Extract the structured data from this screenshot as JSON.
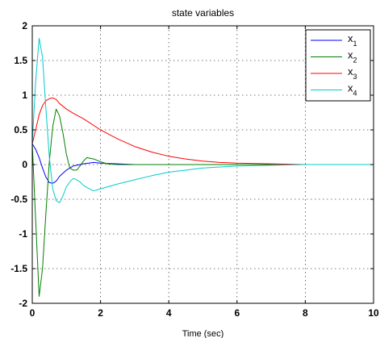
{
  "chart_data": {
    "type": "line",
    "title": "state variables",
    "xlabel": "Time (sec)",
    "ylabel": "",
    "xlim": [
      0,
      10
    ],
    "ylim": [
      -2,
      2
    ],
    "xticks": [
      0,
      2,
      4,
      6,
      8,
      10
    ],
    "yticks": [
      -2,
      -1.5,
      -1,
      -0.5,
      0,
      0.5,
      1,
      1.5,
      2
    ],
    "xtick_labels": [
      "0",
      "2",
      "4",
      "6",
      "8",
      "10"
    ],
    "ytick_labels": [
      "-2",
      "-1.5",
      "-1",
      "-0.5",
      "0",
      "0.5",
      "1",
      "1.5",
      "2"
    ],
    "grid": true,
    "legend_position": "top-right",
    "series": [
      {
        "name": "x",
        "subscript": "1",
        "color": "#0000ff",
        "x": [
          0,
          0.1,
          0.2,
          0.3,
          0.4,
          0.5,
          0.6,
          0.7,
          0.8,
          1.0,
          1.2,
          1.5,
          1.8,
          2.0,
          2.5,
          3.0,
          4.0,
          5.0,
          6.0,
          8.0,
          10.0
        ],
        "y": [
          0.3,
          0.22,
          0.1,
          -0.05,
          -0.18,
          -0.26,
          -0.27,
          -0.24,
          -0.17,
          -0.08,
          -0.02,
          0.01,
          0.03,
          0.02,
          0.01,
          0.0,
          0.0,
          0.0,
          0.0,
          0.0,
          0.0
        ]
      },
      {
        "name": "x",
        "subscript": "2",
        "color": "#008000",
        "x": [
          0,
          0.1,
          0.2,
          0.3,
          0.4,
          0.5,
          0.6,
          0.7,
          0.8,
          0.9,
          1.0,
          1.1,
          1.2,
          1.3,
          1.4,
          1.5,
          1.6,
          1.8,
          2.0,
          2.2,
          2.5,
          3.0,
          4.0,
          6.0,
          8.0,
          10.0
        ],
        "y": [
          0.3,
          -0.8,
          -1.9,
          -1.5,
          -0.7,
          0.05,
          0.55,
          0.8,
          0.7,
          0.45,
          0.15,
          -0.05,
          -0.08,
          -0.08,
          -0.02,
          0.05,
          0.1,
          0.08,
          0.04,
          0.01,
          0.0,
          0.0,
          0.0,
          0.0,
          0.0,
          0.0
        ]
      },
      {
        "name": "x",
        "subscript": "3",
        "color": "#ff0000",
        "x": [
          0,
          0.1,
          0.2,
          0.3,
          0.4,
          0.5,
          0.6,
          0.7,
          0.8,
          1.0,
          1.2,
          1.5,
          2.0,
          2.5,
          3.0,
          3.5,
          4.0,
          4.5,
          5.0,
          5.5,
          6.0,
          7.0,
          8.0,
          10.0
        ],
        "y": [
          0.3,
          0.5,
          0.72,
          0.85,
          0.92,
          0.95,
          0.96,
          0.94,
          0.88,
          0.8,
          0.74,
          0.66,
          0.5,
          0.37,
          0.26,
          0.18,
          0.12,
          0.08,
          0.05,
          0.03,
          0.02,
          0.01,
          0.0,
          0.0
        ]
      },
      {
        "name": "x",
        "subscript": "4",
        "color": "#00cccc",
        "x": [
          0,
          0.1,
          0.2,
          0.3,
          0.4,
          0.5,
          0.6,
          0.7,
          0.8,
          0.9,
          1.0,
          1.1,
          1.2,
          1.3,
          1.4,
          1.5,
          1.6,
          1.8,
          2.0,
          2.5,
          3.0,
          3.5,
          4.0,
          5.0,
          6.0,
          7.0,
          8.0,
          10.0
        ],
        "y": [
          0.3,
          1.2,
          1.82,
          1.55,
          0.8,
          0.1,
          -0.35,
          -0.52,
          -0.55,
          -0.45,
          -0.32,
          -0.25,
          -0.2,
          -0.22,
          -0.25,
          -0.3,
          -0.33,
          -0.38,
          -0.35,
          -0.28,
          -0.22,
          -0.16,
          -0.11,
          -0.05,
          -0.02,
          -0.01,
          0.0,
          0.0
        ]
      }
    ]
  }
}
